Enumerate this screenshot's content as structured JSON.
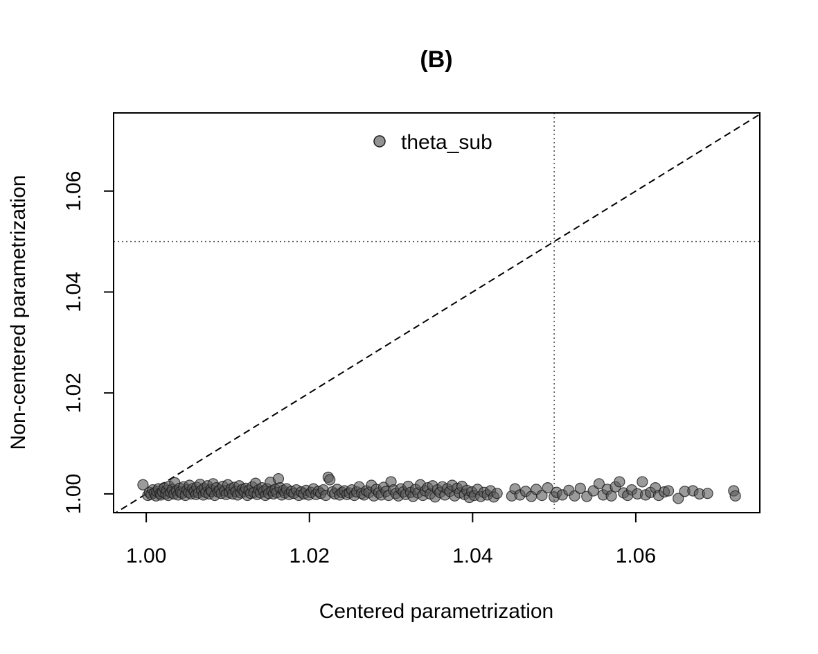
{
  "chart_data": {
    "type": "scatter",
    "title": "(B)",
    "xlabel": "Centered parametrization",
    "ylabel": "Non-centered parametrization",
    "xlim": [
      0.996,
      1.0752
    ],
    "ylim": [
      0.99628,
      1.07548
    ],
    "xticks": [
      "1.00",
      "1.02",
      "1.04",
      "1.06"
    ],
    "yticks": [
      "1.00",
      "1.02",
      "1.04",
      "1.06"
    ],
    "grid": false,
    "legend": {
      "position": "top-center",
      "entries": [
        "theta_sub"
      ]
    },
    "reference_lines": {
      "identity_line": true,
      "vline_x": 1.05,
      "hline_y": 1.05
    },
    "colors": {
      "points": "#595959",
      "point_edge": "#1a1a1a",
      "axes": "#000000",
      "ref_lines": "#555555"
    },
    "series": [
      {
        "name": "theta_sub",
        "points": [
          [
            0.9996,
            1.0018
          ],
          [
            1.0002,
            0.9997
          ],
          [
            1.0004,
            1.0003
          ],
          [
            1.0006,
            0.9999
          ],
          [
            1.0008,
            1.0008
          ],
          [
            1.001,
            1.0002
          ],
          [
            1.0012,
            0.9996
          ],
          [
            1.0013,
            1.0005
          ],
          [
            1.0015,
            1.001
          ],
          [
            1.0017,
            1.0001
          ],
          [
            1.0018,
            0.9998
          ],
          [
            1.002,
            1.0004
          ],
          [
            1.0022,
            1.0012
          ],
          [
            1.0024,
            1.0
          ],
          [
            1.0025,
            1.0007
          ],
          [
            1.0027,
            0.9997
          ],
          [
            1.0028,
            1.0015
          ],
          [
            1.003,
            1.0003
          ],
          [
            1.0032,
            1.0009
          ],
          [
            1.0034,
            1.0
          ],
          [
            1.0035,
            1.0022
          ],
          [
            1.0037,
            1.0006
          ],
          [
            1.0039,
            0.9998
          ],
          [
            1.0041,
            1.0011
          ],
          [
            1.0042,
            1.0004
          ],
          [
            1.0044,
            1.0001
          ],
          [
            1.0046,
            1.0014
          ],
          [
            1.0048,
            0.9997
          ],
          [
            1.005,
            1.0008
          ],
          [
            1.0052,
            1.0003
          ],
          [
            1.0053,
            1.0017
          ],
          [
            1.0055,
            1.0
          ],
          [
            1.0057,
            1.001
          ],
          [
            1.0059,
            1.0005
          ],
          [
            1.0061,
            0.9999
          ],
          [
            1.0062,
            1.0013
          ],
          [
            1.0064,
            1.0002
          ],
          [
            1.0066,
            1.0019
          ],
          [
            1.0068,
            1.0007
          ],
          [
            1.007,
            0.9998
          ],
          [
            1.0071,
            1.0011
          ],
          [
            1.0073,
            1.0003
          ],
          [
            1.0075,
            1.0016
          ],
          [
            1.0077,
            1.0
          ],
          [
            1.0079,
            1.0009
          ],
          [
            1.008,
            1.0005
          ],
          [
            1.0082,
            1.002
          ],
          [
            1.0084,
            0.9997
          ],
          [
            1.0086,
            1.0012
          ],
          [
            1.0088,
            1.0004
          ],
          [
            1.009,
            1.0008
          ],
          [
            1.0092,
            1.0001
          ],
          [
            1.0094,
            1.0015
          ],
          [
            1.0096,
            1.0006
          ],
          [
            1.0098,
            0.9999
          ],
          [
            1.01,
            1.0018
          ],
          [
            1.0102,
            1.0003
          ],
          [
            1.0104,
            1.001
          ],
          [
            1.0106,
            1.0
          ],
          [
            1.0108,
            1.0013
          ],
          [
            1.011,
            1.0005
          ],
          [
            1.0112,
            0.9998
          ],
          [
            1.0114,
            1.0016
          ],
          [
            1.0116,
            1.0002
          ],
          [
            1.0118,
            1.0009
          ],
          [
            1.012,
            1.0004
          ],
          [
            1.0122,
            1.0011
          ],
          [
            1.0124,
            0.9997
          ],
          [
            1.0126,
            1.0007
          ],
          [
            1.0128,
            1.0001
          ],
          [
            1.013,
            1.0014
          ],
          [
            1.0132,
            1.0003
          ],
          [
            1.0134,
            1.0021
          ],
          [
            1.0136,
            0.9999
          ],
          [
            1.0138,
            1.0008
          ],
          [
            1.014,
            1.0002
          ],
          [
            1.0142,
            1.0012
          ],
          [
            1.0144,
            1.0005
          ],
          [
            1.0146,
            0.9997
          ],
          [
            1.0148,
            1.001
          ],
          [
            1.015,
            1.0001
          ],
          [
            1.0152,
            1.0023
          ],
          [
            1.0154,
            1.0006
          ],
          [
            1.0156,
            1.0
          ],
          [
            1.0158,
            1.0009
          ],
          [
            1.016,
            1.0003
          ],
          [
            1.0162,
            1.003
          ],
          [
            1.0164,
            1.0012
          ],
          [
            1.0166,
            0.9998
          ],
          [
            1.0168,
            1.0007
          ],
          [
            1.017,
            1.0002
          ],
          [
            1.0172,
            1.001
          ],
          [
            1.0175,
            0.9999
          ],
          [
            1.0178,
            1.0005
          ],
          [
            1.0181,
            1.0001
          ],
          [
            1.0184,
            1.0008
          ],
          [
            1.0187,
            0.9997
          ],
          [
            1.019,
            1.0004
          ],
          [
            1.0193,
            1.0
          ],
          [
            1.0196,
            1.0007
          ],
          [
            1.0199,
            0.9998
          ],
          [
            1.0202,
            1.0003
          ],
          [
            1.0205,
            1.001
          ],
          [
            1.0208,
            0.9999
          ],
          [
            1.0211,
            1.0005
          ],
          [
            1.0214,
            1.0001
          ],
          [
            1.0217,
            1.0008
          ],
          [
            1.022,
            0.9997
          ],
          [
            1.0223,
            1.0033
          ],
          [
            1.0225,
            1.0028
          ],
          [
            1.0228,
            1.0004
          ],
          [
            1.0231,
            1.0
          ],
          [
            1.0234,
            1.0009
          ],
          [
            1.0237,
            0.9998
          ],
          [
            1.024,
            1.0003
          ],
          [
            1.0243,
            1.0006
          ],
          [
            1.0246,
            0.9999
          ],
          [
            1.0249,
            1.0002
          ],
          [
            1.0252,
            1.0008
          ],
          [
            1.0255,
            0.9997
          ],
          [
            1.0258,
            1.0004
          ],
          [
            1.0261,
            1.0014
          ],
          [
            1.0264,
            1.0001
          ],
          [
            1.0267,
            0.9998
          ],
          [
            1.027,
            1.0006
          ],
          [
            1.0273,
            1.0003
          ],
          [
            1.0276,
            1.0017
          ],
          [
            1.0279,
            0.9996
          ],
          [
            1.0282,
            1.0009
          ],
          [
            1.0285,
            1.0002
          ],
          [
            1.0288,
            0.9998
          ],
          [
            1.0291,
            1.0013
          ],
          [
            1.0294,
            1.0005
          ],
          [
            1.0297,
            0.9997
          ],
          [
            1.03,
            1.0024
          ],
          [
            1.0303,
            1.0008
          ],
          [
            1.0306,
            1.0001
          ],
          [
            1.0309,
            0.9996
          ],
          [
            1.0312,
            1.001
          ],
          [
            1.0315,
            1.0004
          ],
          [
            1.0318,
            0.9999
          ],
          [
            1.0321,
            1.0015
          ],
          [
            1.0324,
            1.0003
          ],
          [
            1.0327,
            0.9995
          ],
          [
            1.033,
            1.0009
          ],
          [
            1.0333,
            1.0002
          ],
          [
            1.0336,
            1.0018
          ],
          [
            1.0339,
            0.9997
          ],
          [
            1.0342,
            1.0006
          ],
          [
            1.0345,
            1.0012
          ],
          [
            1.0348,
            1.0
          ],
          [
            1.0351,
            1.0016
          ],
          [
            1.0354,
            0.9994
          ],
          [
            1.0357,
            1.0008
          ],
          [
            1.036,
            1.0003
          ],
          [
            1.0363,
            1.0014
          ],
          [
            1.0366,
            0.9998
          ],
          [
            1.0369,
            1.001
          ],
          [
            1.0372,
            1.0005
          ],
          [
            1.0375,
            1.0017
          ],
          [
            1.0378,
            0.9996
          ],
          [
            1.0381,
            1.0011
          ],
          [
            1.0384,
            1.0002
          ],
          [
            1.0387,
            1.0015
          ],
          [
            1.039,
            0.9999
          ],
          [
            1.0393,
            1.0007
          ],
          [
            1.0396,
            0.9993
          ],
          [
            1.0399,
            1.0004
          ],
          [
            1.0402,
            0.9997
          ],
          [
            1.0406,
            1.0009
          ],
          [
            1.041,
            0.9995
          ],
          [
            1.0414,
            1.0003
          ],
          [
            1.0418,
            0.9998
          ],
          [
            1.0422,
            1.0006
          ],
          [
            1.0426,
            0.9994
          ],
          [
            1.043,
            1.0001
          ],
          [
            1.0448,
            0.9996
          ],
          [
            1.0452,
            1.001
          ],
          [
            1.0458,
            0.9998
          ],
          [
            1.0465,
            1.0005
          ],
          [
            1.0472,
            0.9995
          ],
          [
            1.0478,
            1.0009
          ],
          [
            1.0485,
            0.9997
          ],
          [
            1.0492,
            1.0012
          ],
          [
            1.05,
            0.9994
          ],
          [
            1.0503,
            1.0003
          ],
          [
            1.051,
            0.9998
          ],
          [
            1.0518,
            1.0007
          ],
          [
            1.0525,
            0.9996
          ],
          [
            1.0532,
            1.0011
          ],
          [
            1.054,
            0.9995
          ],
          [
            1.0548,
            1.0006
          ],
          [
            1.0555,
            1.002
          ],
          [
            1.056,
            0.9998
          ],
          [
            1.0565,
            1.0009
          ],
          [
            1.057,
            0.9996
          ],
          [
            1.0575,
            1.0014
          ],
          [
            1.058,
            1.0024
          ],
          [
            1.0585,
            1.0002
          ],
          [
            1.059,
            0.9997
          ],
          [
            1.0595,
            1.0008
          ],
          [
            1.0602,
            1.0
          ],
          [
            1.0608,
            1.0024
          ],
          [
            1.0612,
            0.9998
          ],
          [
            1.0618,
            1.0003
          ],
          [
            1.0624,
            1.0012
          ],
          [
            1.0628,
            0.9997
          ],
          [
            1.0635,
            1.0004
          ],
          [
            1.064,
            1.0006
          ],
          [
            1.0652,
            0.9991
          ],
          [
            1.066,
            1.0005
          ],
          [
            1.067,
            1.0006
          ],
          [
            1.0678,
            1.0
          ],
          [
            1.0688,
            1.0001
          ],
          [
            1.072,
            1.0006
          ],
          [
            1.0722,
            0.9996
          ]
        ]
      }
    ]
  }
}
